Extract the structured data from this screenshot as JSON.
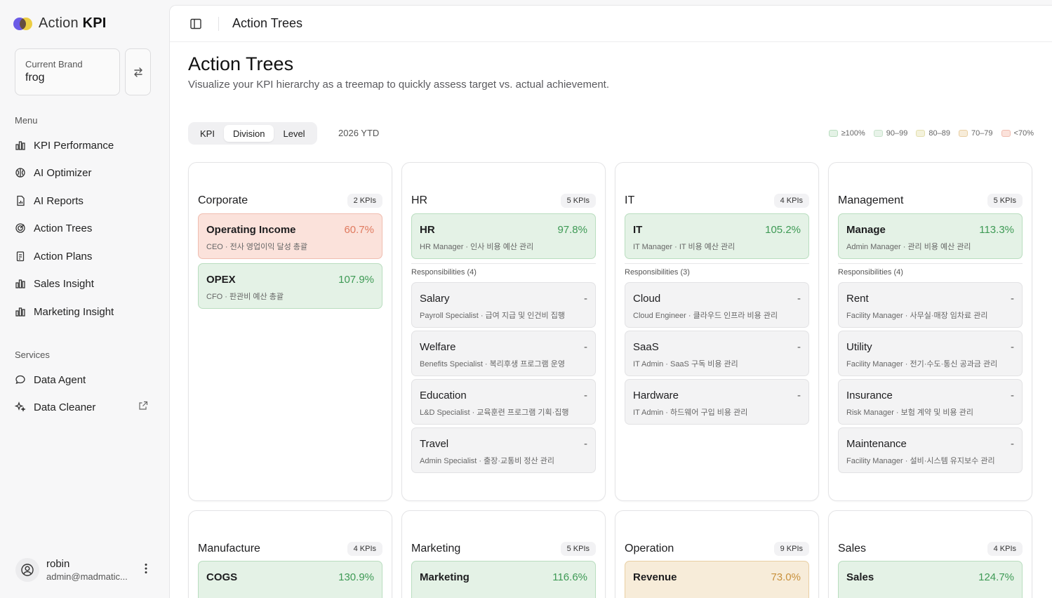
{
  "app": {
    "logo_a": "Action",
    "logo_b": "KPI"
  },
  "brand": {
    "label": "Current Brand",
    "value": "frog"
  },
  "menu": {
    "label": "Menu",
    "items": [
      {
        "label": "KPI Performance",
        "icon": "bar-chart-icon"
      },
      {
        "label": "AI Optimizer",
        "icon": "brain-icon"
      },
      {
        "label": "AI Reports",
        "icon": "document-chart-icon"
      },
      {
        "label": "Action Trees",
        "icon": "target-icon"
      },
      {
        "label": "Action Plans",
        "icon": "clipboard-icon"
      },
      {
        "label": "Sales Insight",
        "icon": "bar-chart-icon"
      },
      {
        "label": "Marketing Insight",
        "icon": "bar-chart-icon"
      }
    ]
  },
  "services": {
    "label": "Services",
    "items": [
      {
        "label": "Data Agent",
        "icon": "chat-bubble-icon"
      },
      {
        "label": "Data Cleaner",
        "icon": "sparkle-icon",
        "external": true
      }
    ]
  },
  "user": {
    "name": "robin",
    "email": "admin@madmatic..."
  },
  "topbar": {
    "title": "Action Trees"
  },
  "page": {
    "title": "Action Trees",
    "subtitle": "Visualize your KPI hierarchy as a treemap to quickly assess target vs. actual achievement."
  },
  "view_toggle": {
    "options": [
      "KPI",
      "Division",
      "Level"
    ],
    "active": "Division"
  },
  "period": "2026 YTD",
  "legend": [
    {
      "label": "≥100%",
      "fill": "#e4f2e6",
      "border": "#b9ddbf"
    },
    {
      "label": "90–99",
      "fill": "#e8f3e9",
      "border": "#c7e2cb"
    },
    {
      "label": "80–89",
      "fill": "#f4f2dc",
      "border": "#e3dfae"
    },
    {
      "label": "70–79",
      "fill": "#f7ecd9",
      "border": "#e9cfa3"
    },
    {
      "label": "<70%",
      "fill": "#fbe2db",
      "border": "#f0bdb0"
    }
  ],
  "divisions": [
    {
      "name": "Corporate",
      "count": "2 KPIs",
      "kpis": [
        {
          "name": "Operating Income",
          "value": "60.7%",
          "sub": "CEO · 전사 영업이익 달성 총괄",
          "tone": "red"
        },
        {
          "name": "OPEX",
          "value": "107.9%",
          "sub": "CFO · 판관비 예산 총괄",
          "tone": "green"
        }
      ]
    },
    {
      "name": "HR",
      "count": "5 KPIs",
      "kpis": [
        {
          "name": "HR",
          "value": "97.8%",
          "sub": "HR Manager · 인사 비용 예산 관리",
          "tone": "green"
        }
      ],
      "resp_label": "Responsibilities (4)",
      "resp": [
        {
          "name": "Salary",
          "value": "-",
          "sub": "Payroll Specialist · 급여 지급 및 인건비 집행"
        },
        {
          "name": "Welfare",
          "value": "-",
          "sub": "Benefits Specialist · 복리후생 프로그램 운영"
        },
        {
          "name": "Education",
          "value": "-",
          "sub": "L&D Specialist · 교육훈련 프로그램 기획·집행"
        },
        {
          "name": "Travel",
          "value": "-",
          "sub": "Admin Specialist · 출장·교통비 정산 관리"
        }
      ]
    },
    {
      "name": "IT",
      "count": "4 KPIs",
      "kpis": [
        {
          "name": "IT",
          "value": "105.2%",
          "sub": "IT Manager · IT 비용 예산 관리",
          "tone": "green"
        }
      ],
      "resp_label": "Responsibilities (3)",
      "resp": [
        {
          "name": "Cloud",
          "value": "-",
          "sub": "Cloud Engineer · 클라우드 인프라 비용 관리"
        },
        {
          "name": "SaaS",
          "value": "-",
          "sub": "IT Admin · SaaS 구독 비용 관리"
        },
        {
          "name": "Hardware",
          "value": "-",
          "sub": "IT Admin · 하드웨어 구입 비용 관리"
        }
      ]
    },
    {
      "name": "Management",
      "count": "5 KPIs",
      "kpis": [
        {
          "name": "Manage",
          "value": "113.3%",
          "sub": "Admin Manager · 관리 비용 예산 관리",
          "tone": "green"
        }
      ],
      "resp_label": "Responsibilities (4)",
      "resp": [
        {
          "name": "Rent",
          "value": "-",
          "sub": "Facility Manager · 사무실·매장 임차료 관리"
        },
        {
          "name": "Utility",
          "value": "-",
          "sub": "Facility Manager · 전기·수도·통신 공과금 관리"
        },
        {
          "name": "Insurance",
          "value": "-",
          "sub": "Risk Manager · 보험 계약 및 비용 관리"
        },
        {
          "name": "Maintenance",
          "value": "-",
          "sub": "Facility Manager · 설비·시스템 유지보수 관리"
        }
      ]
    },
    {
      "name": "Manufacture",
      "count": "4 KPIs",
      "kpis": [
        {
          "name": "COGS",
          "value": "130.9%",
          "tone": "green"
        }
      ]
    },
    {
      "name": "Marketing",
      "count": "5 KPIs",
      "kpis": [
        {
          "name": "Marketing",
          "value": "116.6%",
          "tone": "green"
        }
      ]
    },
    {
      "name": "Operation",
      "count": "9 KPIs",
      "kpis": [
        {
          "name": "Revenue",
          "value": "73.0%",
          "tone": "amber"
        }
      ]
    },
    {
      "name": "Sales",
      "count": "4 KPIs",
      "kpis": [
        {
          "name": "Sales",
          "value": "124.7%",
          "tone": "green"
        }
      ]
    }
  ]
}
